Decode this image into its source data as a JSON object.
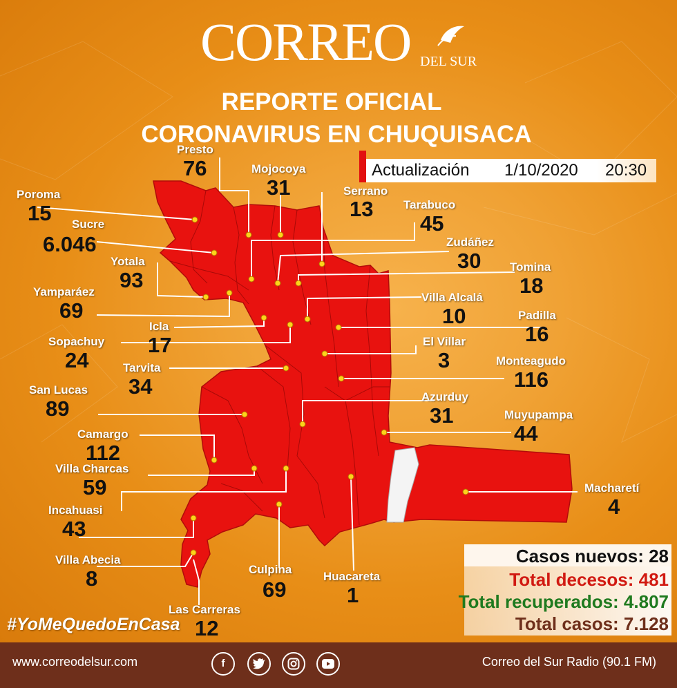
{
  "header": {
    "logo_main": "CORREO",
    "logo_sub": "DEL SUR",
    "title_line1": "REPORTE OFICIAL",
    "title_line2": "CORONAVIRUS EN CHUQUISACA"
  },
  "update": {
    "label": "Actualización",
    "date": "1/10/2020",
    "time": "20:30"
  },
  "municipalities": [
    {
      "name": "Presto",
      "cases": "76"
    },
    {
      "name": "Mojocoya",
      "cases": "31"
    },
    {
      "name": "Serrano",
      "cases": "13"
    },
    {
      "name": "Poroma",
      "cases": "15"
    },
    {
      "name": "Tarabuco",
      "cases": "45"
    },
    {
      "name": "Sucre",
      "cases": "6.046"
    },
    {
      "name": "Zudáñez",
      "cases": "30"
    },
    {
      "name": "Yotala",
      "cases": "93"
    },
    {
      "name": "Tomina",
      "cases": "18"
    },
    {
      "name": "Yamparáez",
      "cases": "69"
    },
    {
      "name": "Villa Alcalá",
      "cases": "10"
    },
    {
      "name": "Icla",
      "cases": "17"
    },
    {
      "name": "Padilla",
      "cases": "16"
    },
    {
      "name": "Sopachuy",
      "cases": "24"
    },
    {
      "name": "El Villar",
      "cases": "3"
    },
    {
      "name": "Tarvita",
      "cases": "34"
    },
    {
      "name": "Monteagudo",
      "cases": "116"
    },
    {
      "name": "San Lucas",
      "cases": "89"
    },
    {
      "name": "Azurduy",
      "cases": "31"
    },
    {
      "name": "Muyupampa",
      "cases": "44"
    },
    {
      "name": "Camargo",
      "cases": "112"
    },
    {
      "name": "Villa Charcas",
      "cases": "59"
    },
    {
      "name": "Macharetí",
      "cases": "4"
    },
    {
      "name": "Incahuasi",
      "cases": "43"
    },
    {
      "name": "Villa Abecia",
      "cases": "8"
    },
    {
      "name": "Culpina",
      "cases": "69"
    },
    {
      "name": "Huacareta",
      "cases": "1"
    },
    {
      "name": "Las Carreras",
      "cases": "12"
    }
  ],
  "stats": {
    "new_cases": "Casos nuevos: 28",
    "deaths": "Total decesos: 481",
    "recovered": "Total recuperados: 4.807",
    "total": "Total casos: 7.128"
  },
  "colors": {
    "map_fill": "#e8120f",
    "deaths": "#d11a12",
    "recovered": "#1f7a1f",
    "total": "#6e2f1b",
    "footer": "#6e2f1b"
  },
  "hashtag": "#YoMeQuedoEnCasa",
  "footer": {
    "website": "www.correodelsur.com",
    "radio": "Correo del Sur Radio (90.1 FM)",
    "social_icons": [
      "facebook-icon",
      "twitter-icon",
      "instagram-icon",
      "youtube-icon"
    ]
  }
}
